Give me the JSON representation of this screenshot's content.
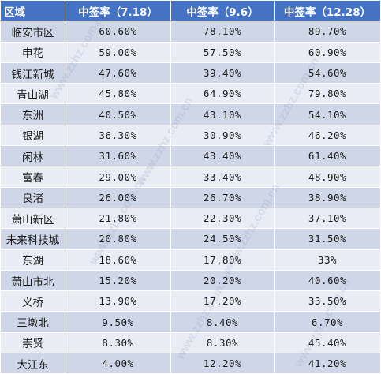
{
  "table": {
    "headers": [
      "区域",
      "中签率（7.18）",
      "中签率（9.6）",
      "中签率（12.28）"
    ],
    "rows": [
      [
        "临安市区",
        "60.60%",
        "78.10%",
        "89.70%"
      ],
      [
        "申花",
        "59.00%",
        "57.50%",
        "60.90%"
      ],
      [
        "钱江新城",
        "47.60%",
        "39.40%",
        "54.60%"
      ],
      [
        "青山湖",
        "45.80%",
        "64.90%",
        "79.80%"
      ],
      [
        "东洲",
        "40.50%",
        "43.10%",
        "54.10%"
      ],
      [
        "银湖",
        "36.30%",
        "30.90%",
        "46.20%"
      ],
      [
        "闲林",
        "31.60%",
        "43.40%",
        "61.40%"
      ],
      [
        "富春",
        "29.00%",
        "33.40%",
        "48.90%"
      ],
      [
        "良渚",
        "26.00%",
        "26.70%",
        "38.90%"
      ],
      [
        "萧山新区",
        "21.80%",
        "22.30%",
        "37.10%"
      ],
      [
        "未来科技城",
        "20.80%",
        "24.50%",
        "31.50%"
      ],
      [
        "东湖",
        "18.60%",
        "17.80%",
        "33%"
      ],
      [
        "萧山市北",
        "15.20%",
        "20.20%",
        "40.60%"
      ],
      [
        "义桥",
        "13.90%",
        "17.20%",
        "33.50%"
      ],
      [
        "三墩北",
        "9.50%",
        "8.40%",
        "6.70%"
      ],
      [
        "崇贤",
        "8.30%",
        "8.30%",
        "45.40%"
      ],
      [
        "大江东",
        "4.00%",
        "12.20%",
        "41.20%"
      ]
    ]
  },
  "watermark": "www.zzhz.com.cn",
  "colors": {
    "header": "#4472c4",
    "row_dark": "#cfd6e8",
    "row_light": "#e9ecf5"
  }
}
